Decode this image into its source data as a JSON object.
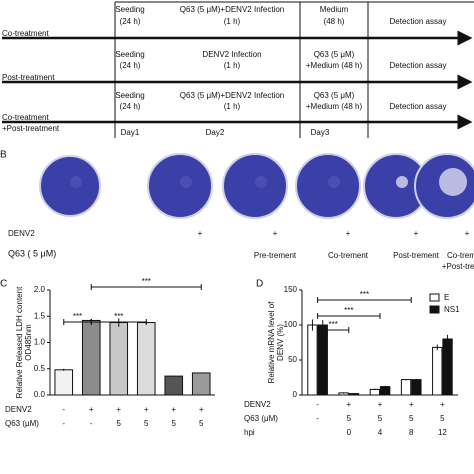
{
  "panel_a": {
    "rows": [
      {
        "label": [
          "Co-treatment"
        ],
        "steps": [
          [
            "Seeding",
            "(24 h)"
          ],
          [
            "Q63 (5 μM)+DENV2 Infection",
            "(1 h)"
          ],
          [
            "Medium",
            "(48 h)"
          ],
          [
            "Detection assay"
          ]
        ]
      },
      {
        "label": [
          "Post-treatment"
        ],
        "steps": [
          [
            "Seeding",
            "(24 h)"
          ],
          [
            "DENV2 Infection",
            "(1 h)"
          ],
          [
            "Q63 (5 μM)",
            "+Medium (48 h)"
          ],
          [
            "Detection assay"
          ]
        ]
      },
      {
        "label": [
          "Co-treatment",
          "+Post-treatment"
        ],
        "steps": [
          [
            "Seeding",
            "(24 h)"
          ],
          [
            "Q63 (5 μM)+DENV2 Infection",
            "(1 h)"
          ],
          [
            "Q63 (5 μM)",
            "+Medium (48 h)"
          ],
          [
            "Detection assay"
          ]
        ]
      }
    ],
    "days": [
      "Day1",
      "Day2",
      "Day3"
    ]
  },
  "panel_b": {
    "letter": "B",
    "row_labels": [
      "DENV2",
      "Q63 ( 5 μM)"
    ],
    "denv2": [
      null,
      "+",
      "+",
      "+",
      "+",
      "+"
    ],
    "treatments": [
      null,
      null,
      [
        "Pre-trement"
      ],
      [
        "Co-trement"
      ],
      [
        "Post-trement"
      ],
      [
        "Co-trement",
        "+Post-trement"
      ]
    ]
  },
  "chart_data": [
    {
      "type": "bar",
      "letter": "C",
      "ylabel": [
        "Relative Released LDH content",
        "OD485nm"
      ],
      "values": [
        0.48,
        1.42,
        1.38,
        1.38,
        0.36,
        0.42
      ],
      "errors": [
        0.02,
        0.03,
        0.08,
        0.03,
        0.01,
        0.01
      ],
      "colors": [
        "#f2f2f2",
        "#8c8c8c",
        "#c8c8c8",
        "#dcdcdc",
        "#555555",
        "#9a9a9a"
      ],
      "ylim": [
        0,
        2.0
      ],
      "yticks": [
        {
          "value": 0,
          "label": "0.0"
        },
        0.5,
        {
          "value": 1,
          "label": "1.0"
        },
        1.5,
        {
          "value": 2,
          "label": "2.0"
        }
      ],
      "rows": [
        {
          "label": "DENV2",
          "values": [
            "-",
            "+",
            "+",
            "+",
            "+",
            "+"
          ]
        },
        {
          "label": "Q63 (μM)",
          "values": [
            "-",
            "-",
            "5",
            "5",
            "5",
            "5"
          ]
        }
      ],
      "annotations": [
        {
          "label": "***",
          "between": [
            0,
            1
          ]
        },
        {
          "label": "***",
          "between": [
            1,
            5
          ]
        },
        {
          "label": "***",
          "between": [
            1,
            3
          ]
        }
      ]
    },
    {
      "type": "grouped_bar",
      "letter": "D",
      "ylabel": [
        "Relative mRNA level of",
        "DENV (%)"
      ],
      "series": [
        {
          "name": "E",
          "color": "#ffffff",
          "values": [
            100,
            3,
            8,
            22,
            68
          ],
          "errors": [
            8,
            1,
            1,
            1,
            4
          ]
        },
        {
          "name": "NS1",
          "color": "#111111",
          "values": [
            100,
            2,
            12,
            22,
            80
          ],
          "errors": [
            7,
            1,
            1,
            1,
            6
          ]
        }
      ],
      "ylim": [
        0,
        150
      ],
      "yticks": [
        0,
        50,
        100,
        150
      ],
      "rows": [
        {
          "label": "DENV2",
          "values": [
            "-",
            "+",
            "+",
            "+",
            "+"
          ]
        },
        {
          "label": "Q63 (μM)",
          "values": [
            "-",
            "5",
            "5",
            "5",
            "5"
          ]
        },
        {
          "label": "hpi",
          "values": [
            null,
            "0",
            "4",
            "8",
            "12"
          ]
        }
      ],
      "annotations": [
        {
          "label": "***",
          "between": [
            0,
            3
          ]
        },
        {
          "label": "***",
          "between": [
            0,
            2
          ]
        },
        {
          "label": "***",
          "between": [
            0,
            1
          ]
        }
      ]
    }
  ]
}
